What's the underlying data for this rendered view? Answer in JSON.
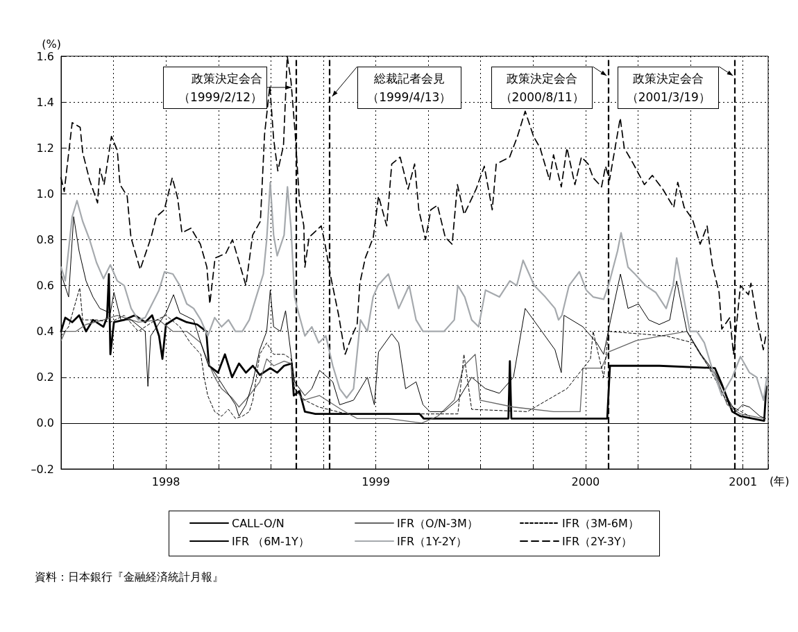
{
  "chart_data": {
    "type": "line",
    "ylabel": "(%)",
    "xlabel": "(年)",
    "xlim": [
      1998,
      2001.37
    ],
    "ylim": [
      -0.2,
      1.6
    ],
    "xticks": [
      {
        "value": 1998,
        "label": null
      },
      {
        "value": 1998.25,
        "label": null
      },
      {
        "value": 1998.5,
        "label": "1998"
      },
      {
        "value": 1998.75,
        "label": null
      },
      {
        "value": 1999,
        "label": null
      },
      {
        "value": 1999.25,
        "label": null
      },
      {
        "value": 1999.5,
        "label": "1999"
      },
      {
        "value": 1999.75,
        "label": null
      },
      {
        "value": 2000,
        "label": null
      },
      {
        "value": 2000.25,
        "label": null
      },
      {
        "value": 2000.5,
        "label": "2000"
      },
      {
        "value": 2000.75,
        "label": null
      },
      {
        "value": 2001,
        "label": null
      },
      {
        "value": 2001.25,
        "label": "2001"
      }
    ],
    "yticks": [
      {
        "value": -0.2,
        "label": "–0.2"
      },
      {
        "value": 0,
        "label": "0.0"
      },
      0.2,
      0.4,
      0.6,
      0.8,
      {
        "value": 1,
        "label": "1.0"
      },
      1.2,
      1.4,
      1.6
    ],
    "grid": true,
    "legend": "bottom",
    "marker": "none",
    "ref_lines": [
      {
        "axis": "y",
        "value": 0,
        "color": "#000000",
        "line_style": "solid"
      },
      {
        "axis": "x",
        "value": 1999.115,
        "label": "政策決定会合（1999/2/12）",
        "color": "#000000",
        "line_style": "dashed"
      },
      {
        "axis": "x",
        "value": 1999.279,
        "label": "総裁記者会見（1999/4/13）",
        "color": "#000000",
        "line_style": "dashed"
      },
      {
        "axis": "x",
        "value": 2000.61,
        "label": "政策決定会合（2000/8/11）",
        "color": "#000000",
        "line_style": "dashed"
      },
      {
        "axis": "x",
        "value": 2001.212,
        "label": "政策決定会合（2001/3/19）",
        "color": "#000000",
        "line_style": "dashed"
      }
    ],
    "annotations": [
      "資料：日本銀行『金融経済統計月報』"
    ],
    "series": [
      {
        "name": "CALL-O/N",
        "color": "#000000",
        "line_style": "solid",
        "x": [
          1998.0,
          1998.02,
          1998.053,
          1998.086,
          1998.119,
          1998.152,
          1998.202,
          1998.219,
          1998.228,
          1998.235,
          1998.252,
          1998.301,
          1998.351,
          1998.401,
          1998.434,
          1998.467,
          1998.483,
          1998.5,
          1998.55,
          1998.599,
          1998.649,
          1998.692,
          1998.705,
          1998.748,
          1998.781,
          1998.815,
          1998.848,
          1998.881,
          1998.914,
          1998.947,
          1998.997,
          1999.03,
          1999.063,
          1999.099,
          1999.109,
          1999.136,
          1999.162,
          1999.212,
          1999.709,
          1999.728,
          2000.132,
          2000.139,
          2000.146,
          2000.603,
          2000.616,
          2000.851,
          2001.116,
          2001.149,
          2001.199,
          2001.238,
          2001.351,
          2001.361
        ],
        "values": [
          0.4,
          0.46,
          0.44,
          0.47,
          0.4,
          0.45,
          0.42,
          0.46,
          0.65,
          0.3,
          0.44,
          0.45,
          0.47,
          0.44,
          0.47,
          0.38,
          0.28,
          0.43,
          0.46,
          0.44,
          0.43,
          0.4,
          0.25,
          0.22,
          0.3,
          0.2,
          0.26,
          0.22,
          0.25,
          0.21,
          0.24,
          0.22,
          0.25,
          0.26,
          0.12,
          0.14,
          0.05,
          0.04,
          0.04,
          0.02,
          0.02,
          0.27,
          0.02,
          0.02,
          0.25,
          0.25,
          0.24,
          0.17,
          0.05,
          0.03,
          0.01,
          0.16
        ]
      },
      {
        "name": "IFR（O/N-3M）",
        "color": "#666666",
        "line_style": "solid",
        "x": [
          1998.0,
          1998.02,
          1998.07,
          1998.119,
          1998.202,
          1998.268,
          1998.368,
          1998.467,
          1998.533,
          1998.599,
          1998.666,
          1998.699,
          1998.732,
          1998.765,
          1998.815,
          1998.848,
          1998.897,
          1998.947,
          1998.98,
          1999.013,
          1999.063,
          1999.096,
          1999.113,
          1999.156,
          1999.232,
          1999.334,
          1999.411,
          1999.56,
          1999.719,
          1999.795,
          1999.874,
          1999.92,
          1999.974,
          1999.997,
          2000.156,
          2000.348,
          2000.474,
          2000.487,
          2000.576,
          2000.609,
          2000.742,
          2000.921,
          2000.983,
          2001.046,
          2001.123,
          2001.175,
          2001.238,
          2001.351
        ],
        "values": [
          0.36,
          0.4,
          0.4,
          0.43,
          0.45,
          0.47,
          0.44,
          0.45,
          0.4,
          0.4,
          0.35,
          0.27,
          0.2,
          0.15,
          0.11,
          0.07,
          0.12,
          0.18,
          0.28,
          0.25,
          0.27,
          0.26,
          0.15,
          0.1,
          0.12,
          0.06,
          0.02,
          0.02,
          0.0,
          0.03,
          0.1,
          0.25,
          0.3,
          0.1,
          0.07,
          0.05,
          0.05,
          0.24,
          0.24,
          0.31,
          0.36,
          0.39,
          0.4,
          0.3,
          0.2,
          0.08,
          0.04,
          0.02
        ]
      },
      {
        "name": "IFR（3M-6M）",
        "color": "#000000",
        "line_style": "dashed",
        "x": [
          1998.0,
          1998.036,
          1998.089,
          1998.103,
          1998.169,
          1998.235,
          1998.301,
          1998.368,
          1998.434,
          1998.5,
          1998.566,
          1998.616,
          1998.666,
          1998.682,
          1998.699,
          1998.732,
          1998.765,
          1998.798,
          1998.831,
          1998.864,
          1998.897,
          1998.914,
          1998.947,
          1998.98,
          1999.013,
          1999.063,
          1999.096,
          1999.113,
          1999.162,
          1999.228,
          1999.361,
          1999.692,
          1999.891,
          1999.92,
          1999.957,
          2000.222,
          2000.411,
          2000.523,
          2000.536,
          2000.586,
          2000.609,
          2000.884,
          2001.013,
          2001.083,
          2001.182,
          2001.281
        ],
        "values": [
          0.38,
          0.42,
          0.59,
          0.45,
          0.45,
          0.44,
          0.47,
          0.4,
          0.44,
          0.47,
          0.42,
          0.35,
          0.3,
          0.2,
          0.12,
          0.05,
          0.03,
          0.06,
          0.02,
          0.03,
          0.05,
          0.1,
          0.3,
          0.35,
          0.3,
          0.3,
          0.28,
          0.15,
          0.1,
          0.07,
          0.04,
          0.04,
          0.04,
          0.3,
          0.06,
          0.05,
          0.15,
          0.28,
          0.4,
          0.2,
          0.4,
          0.38,
          0.35,
          0.25,
          0.08,
          0.03
        ]
      },
      {
        "name": "IFR （6M-1Y）",
        "color": "#000000",
        "line_style": "solid",
        "x": [
          1998.0,
          1998.036,
          1998.06,
          1998.086,
          1998.119,
          1998.152,
          1998.185,
          1998.235,
          1998.252,
          1998.285,
          1998.334,
          1998.401,
          1998.414,
          1998.427,
          1998.5,
          1998.536,
          1998.566,
          1998.632,
          1998.666,
          1998.699,
          1998.732,
          1998.781,
          1998.831,
          1998.848,
          1998.881,
          1998.914,
          1998.947,
          1998.98,
          1998.997,
          1999.013,
          1999.046,
          1999.07,
          1999.096,
          1999.113,
          1999.162,
          1999.195,
          1999.232,
          1999.295,
          1999.328,
          1999.394,
          1999.46,
          1999.493,
          1999.513,
          1999.576,
          1999.609,
          1999.642,
          1999.692,
          1999.725,
          1999.758,
          1999.825,
          1999.891,
          1999.957,
          2000.023,
          2000.089,
          2000.156,
          2000.212,
          2000.291,
          2000.354,
          2000.384,
          2000.397,
          2000.487,
          2000.553,
          2000.586,
          2000.619,
          2000.666,
          2000.702,
          2000.752,
          2000.801,
          2000.851,
          2000.901,
          2000.934,
          2000.983,
          2001.05,
          2001.116,
          2001.182,
          2001.215,
          2001.248,
          2001.281,
          2001.331,
          2001.358
        ],
        "values": [
          0.65,
          0.55,
          0.9,
          0.75,
          0.62,
          0.55,
          0.5,
          0.48,
          0.57,
          0.45,
          0.45,
          0.4,
          0.16,
          0.38,
          0.48,
          0.56,
          0.48,
          0.45,
          0.35,
          0.26,
          0.22,
          0.15,
          0.08,
          0.03,
          0.08,
          0.18,
          0.32,
          0.4,
          0.58,
          0.42,
          0.4,
          0.49,
          0.3,
          0.18,
          0.12,
          0.15,
          0.23,
          0.18,
          0.08,
          0.1,
          0.2,
          0.08,
          0.31,
          0.39,
          0.35,
          0.15,
          0.18,
          0.08,
          0.05,
          0.05,
          0.1,
          0.2,
          0.15,
          0.13,
          0.2,
          0.5,
          0.4,
          0.32,
          0.22,
          0.47,
          0.42,
          0.35,
          0.3,
          0.45,
          0.65,
          0.5,
          0.52,
          0.45,
          0.43,
          0.45,
          0.62,
          0.4,
          0.3,
          0.22,
          0.1,
          0.05,
          0.08,
          0.07,
          0.03,
          0.02
        ]
      },
      {
        "name": "IFR（1Y-2Y）",
        "color": "#a5a9ad",
        "line_style": "solid",
        "x": [
          1998.0,
          1998.02,
          1998.053,
          1998.076,
          1998.103,
          1998.136,
          1998.169,
          1998.202,
          1998.235,
          1998.268,
          1998.301,
          1998.334,
          1998.368,
          1998.401,
          1998.434,
          1998.467,
          1998.493,
          1998.533,
          1998.566,
          1998.599,
          1998.632,
          1998.666,
          1998.699,
          1998.732,
          1998.765,
          1998.798,
          1998.831,
          1998.864,
          1998.897,
          1998.93,
          1998.964,
          1998.98,
          1998.997,
          1999.013,
          1999.03,
          1999.063,
          1999.079,
          1999.096,
          1999.113,
          1999.129,
          1999.162,
          1999.195,
          1999.228,
          1999.262,
          1999.295,
          1999.328,
          1999.361,
          1999.394,
          1999.427,
          1999.46,
          1999.487,
          1999.51,
          1999.56,
          1999.609,
          1999.659,
          1999.692,
          1999.725,
          1999.775,
          1999.825,
          1999.874,
          1999.891,
          1999.924,
          1999.957,
          1999.99,
          2000.023,
          2000.089,
          2000.139,
          2000.172,
          2000.202,
          2000.255,
          2000.308,
          2000.354,
          2000.371,
          2000.387,
          2000.421,
          2000.47,
          2000.503,
          2000.536,
          2000.586,
          2000.609,
          2000.652,
          2000.669,
          2000.702,
          2000.735,
          2000.785,
          2000.834,
          2000.884,
          2000.917,
          2000.934,
          2000.967,
          2000.997,
          2001.03,
          2001.066,
          2001.099,
          2001.149,
          2001.199,
          2001.238,
          2001.281,
          2001.315,
          2001.348,
          2001.364
        ],
        "values": [
          0.68,
          0.62,
          0.9,
          0.97,
          0.88,
          0.8,
          0.7,
          0.63,
          0.69,
          0.62,
          0.6,
          0.5,
          0.45,
          0.46,
          0.52,
          0.58,
          0.66,
          0.65,
          0.6,
          0.52,
          0.5,
          0.45,
          0.38,
          0.46,
          0.42,
          0.45,
          0.4,
          0.4,
          0.45,
          0.55,
          0.65,
          0.8,
          1.05,
          0.82,
          0.73,
          0.82,
          1.03,
          0.85,
          0.55,
          0.49,
          0.38,
          0.42,
          0.35,
          0.38,
          0.25,
          0.15,
          0.11,
          0.15,
          0.45,
          0.4,
          0.55,
          0.6,
          0.65,
          0.5,
          0.6,
          0.45,
          0.4,
          0.4,
          0.4,
          0.45,
          0.6,
          0.55,
          0.45,
          0.42,
          0.58,
          0.55,
          0.62,
          0.6,
          0.71,
          0.6,
          0.55,
          0.5,
          0.45,
          0.47,
          0.6,
          0.66,
          0.58,
          0.55,
          0.54,
          0.6,
          0.75,
          0.83,
          0.68,
          0.65,
          0.6,
          0.57,
          0.5,
          0.6,
          0.72,
          0.55,
          0.4,
          0.4,
          0.35,
          0.25,
          0.12,
          0.2,
          0.29,
          0.22,
          0.2,
          0.1,
          0.2
        ]
      },
      {
        "name": "IFR（2Y-3Y）",
        "color": "#000000",
        "line_style": "dashed",
        "x": [
          1998.0,
          1998.015,
          1998.053,
          1998.091,
          1998.103,
          1998.136,
          1998.174,
          1998.185,
          1998.205,
          1998.24,
          1998.268,
          1998.281,
          1998.315,
          1998.333,
          1998.377,
          1998.429,
          1998.454,
          1998.492,
          1998.53,
          1998.556,
          1998.576,
          1998.619,
          1998.664,
          1998.695,
          1998.709,
          1998.734,
          1998.785,
          1998.817,
          1998.881,
          1998.913,
          1998.95,
          1998.97,
          1998.995,
          1999.013,
          1999.033,
          1999.06,
          1999.078,
          1999.096,
          1999.116,
          1999.136,
          1999.157,
          1999.162,
          1999.182,
          1999.24,
          1999.258,
          1999.285,
          1999.323,
          1999.354,
          1999.386,
          1999.411,
          1999.424,
          1999.45,
          1999.488,
          1999.513,
          1999.552,
          1999.576,
          1999.616,
          1999.654,
          1999.685,
          1999.705,
          1999.737,
          1999.762,
          1999.794,
          1999.831,
          1999.864,
          1999.889,
          1999.921,
          1999.978,
          2000.017,
          2000.055,
          2000.074,
          2000.138,
          2000.175,
          2000.212,
          2000.252,
          2000.283,
          2000.328,
          2000.347,
          2000.384,
          2000.411,
          2000.449,
          2000.48,
          2000.512,
          2000.536,
          2000.576,
          2000.595,
          2000.614,
          2000.646,
          2000.665,
          2000.684,
          2000.728,
          2000.78,
          2000.818,
          2000.868,
          2000.92,
          2000.939,
          2000.97,
          2001.009,
          2001.046,
          2001.079,
          2001.104,
          2001.136,
          2001.149,
          2001.187,
          2001.205,
          2001.238,
          2001.276,
          2001.288,
          2001.315,
          2001.347,
          2001.361
        ],
        "values": [
          1.07,
          1.01,
          1.31,
          1.29,
          1.18,
          1.06,
          0.96,
          1.11,
          1.04,
          1.25,
          1.19,
          1.04,
          0.99,
          0.81,
          0.67,
          0.81,
          0.9,
          0.93,
          1.07,
          0.98,
          0.83,
          0.85,
          0.78,
          0.68,
          0.52,
          0.72,
          0.74,
          0.8,
          0.6,
          0.82,
          0.88,
          1.26,
          1.47,
          1.24,
          1.1,
          1.21,
          1.6,
          1.49,
          1.26,
          0.97,
          0.86,
          0.68,
          0.81,
          0.86,
          0.78,
          0.64,
          0.47,
          0.3,
          0.38,
          0.43,
          0.61,
          0.72,
          0.81,
          0.99,
          0.86,
          1.13,
          1.16,
          1.02,
          1.13,
          0.93,
          0.8,
          0.93,
          0.95,
          0.81,
          0.78,
          1.04,
          0.91,
          1.02,
          1.12,
          0.93,
          1.13,
          1.16,
          1.25,
          1.36,
          1.25,
          1.2,
          1.06,
          1.17,
          1.03,
          1.2,
          1.04,
          1.16,
          1.13,
          1.07,
          1.03,
          1.12,
          1.06,
          1.23,
          1.33,
          1.2,
          1.13,
          1.04,
          1.08,
          1.02,
          0.94,
          1.05,
          0.94,
          0.89,
          0.78,
          0.86,
          0.69,
          0.57,
          0.41,
          0.46,
          0.3,
          0.6,
          0.56,
          0.61,
          0.46,
          0.32,
          0.39
        ]
      }
    ]
  }
}
